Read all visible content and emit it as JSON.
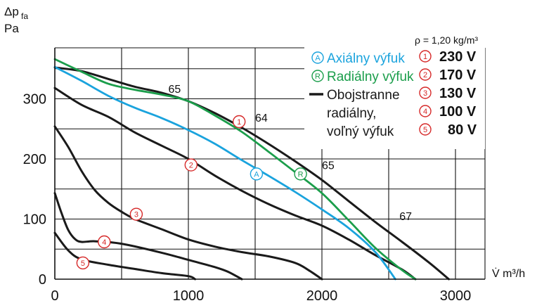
{
  "chart_data": {
    "type": "line",
    "xlabel": "V̇ m³/h",
    "ylabel": [
      "Δp",
      "fa",
      "Pa"
    ],
    "density_label": "ρ = 1,20 kg/m³",
    "xlim": [
      0,
      3250
    ],
    "ylim": [
      0,
      385
    ],
    "x_ticks": [
      "0",
      "1000",
      "2000",
      "3000"
    ],
    "x_tick_values": [
      0,
      1000,
      2000,
      3000
    ],
    "y_ticks": [
      "0",
      "100",
      "200",
      "300"
    ],
    "y_tick_values": [
      0,
      100,
      200,
      300
    ],
    "grid": true,
    "legend": [
      {
        "symbol": "A",
        "label": "Axiálny výfuk",
        "color": "#1aa3dd"
      },
      {
        "symbol": "R",
        "label": "Radiálny výfuk",
        "color": "#1b9e4b"
      },
      {
        "symbol": "",
        "label_lines": [
          "Obojstranne",
          "radiálny,",
          "voľný výfuk"
        ],
        "color": "#1a1a1a"
      }
    ],
    "speeds": [
      {
        "symbol": "1",
        "label": "230 V"
      },
      {
        "symbol": "2",
        "label": "170 V"
      },
      {
        "symbol": "3",
        "label": "130 V"
      },
      {
        "symbol": "4",
        "label": "100 V"
      },
      {
        "symbol": "5",
        "label": "80 V"
      }
    ],
    "series": [
      {
        "key": "black1",
        "color": "#1a1a1a",
        "points": [
          [
            0,
            352
          ],
          [
            200,
            346
          ],
          [
            400,
            333
          ],
          [
            600,
            320
          ],
          [
            800,
            310
          ],
          [
            1000,
            296
          ],
          [
            1200,
            276
          ],
          [
            1400,
            252
          ],
          [
            1600,
            225
          ],
          [
            1800,
            196
          ],
          [
            2000,
            165
          ],
          [
            2200,
            130
          ],
          [
            2400,
            95
          ],
          [
            2600,
            62
          ],
          [
            2800,
            28
          ],
          [
            2950,
            0
          ]
        ]
      },
      {
        "key": "axial",
        "color": "#1aa3dd",
        "points": [
          [
            0,
            353
          ],
          [
            200,
            330
          ],
          [
            400,
            305
          ],
          [
            600,
            285
          ],
          [
            800,
            268
          ],
          [
            1000,
            248
          ],
          [
            1200,
            225
          ],
          [
            1400,
            198
          ],
          [
            1600,
            172
          ],
          [
            1800,
            145
          ],
          [
            2000,
            116
          ],
          [
            2200,
            85
          ],
          [
            2400,
            45
          ],
          [
            2550,
            0
          ]
        ]
      },
      {
        "key": "radial",
        "color": "#1b9e4b",
        "points": [
          [
            0,
            366
          ],
          [
            200,
            345
          ],
          [
            400,
            325
          ],
          [
            600,
            315
          ],
          [
            800,
            307
          ],
          [
            1000,
            296
          ],
          [
            1200,
            272
          ],
          [
            1400,
            245
          ],
          [
            1600,
            212
          ],
          [
            1800,
            178
          ],
          [
            2000,
            143
          ],
          [
            2200,
            98
          ],
          [
            2400,
            52
          ],
          [
            2600,
            15
          ],
          [
            2700,
            0
          ]
        ]
      },
      {
        "key": "black2",
        "color": "#1a1a1a",
        "points": [
          [
            0,
            318
          ],
          [
            200,
            290
          ],
          [
            400,
            270
          ],
          [
            600,
            244
          ],
          [
            800,
            222
          ],
          [
            1000,
            200
          ],
          [
            1200,
            172
          ],
          [
            1400,
            147
          ],
          [
            1600,
            125
          ],
          [
            1800,
            106
          ],
          [
            2000,
            89
          ],
          [
            2200,
            66
          ],
          [
            2400,
            40
          ],
          [
            2600,
            16
          ],
          [
            2700,
            0
          ]
        ]
      },
      {
        "key": "black3",
        "color": "#1a1a1a",
        "points": [
          [
            0,
            254
          ],
          [
            100,
            220
          ],
          [
            200,
            180
          ],
          [
            300,
            148
          ],
          [
            400,
            127
          ],
          [
            500,
            112
          ],
          [
            600,
            100
          ],
          [
            800,
            83
          ],
          [
            1000,
            66
          ],
          [
            1200,
            54
          ],
          [
            1400,
            45
          ],
          [
            1600,
            38
          ],
          [
            1800,
            27
          ],
          [
            1900,
            15
          ],
          [
            2000,
            0
          ]
        ]
      },
      {
        "key": "black4",
        "color": "#1a1a1a",
        "points": [
          [
            0,
            143
          ],
          [
            50,
            110
          ],
          [
            100,
            82
          ],
          [
            150,
            67
          ],
          [
            200,
            62
          ],
          [
            300,
            63
          ],
          [
            500,
            59
          ],
          [
            800,
            44
          ],
          [
            1000,
            32
          ],
          [
            1200,
            20
          ],
          [
            1300,
            12
          ],
          [
            1400,
            0
          ]
        ]
      },
      {
        "key": "black5",
        "color": "#1a1a1a",
        "points": [
          [
            0,
            77
          ],
          [
            100,
            48
          ],
          [
            200,
            33
          ],
          [
            400,
            24
          ],
          [
            600,
            17
          ],
          [
            800,
            10
          ],
          [
            1000,
            5
          ],
          [
            1050,
            0
          ]
        ]
      }
    ],
    "efficiency_labels": [
      {
        "text": "65",
        "x": 850,
        "y": 310
      },
      {
        "text": "64",
        "x": 1500,
        "y": 262
      },
      {
        "text": "65",
        "x": 2000,
        "y": 183
      },
      {
        "text": "67",
        "x": 2580,
        "y": 98
      }
    ],
    "curve_markers": [
      {
        "symbol": "1",
        "x": 1380,
        "y": 262,
        "color": "#d62828"
      },
      {
        "symbol": "2",
        "x": 1020,
        "y": 190,
        "color": "#d62828"
      },
      {
        "symbol": "3",
        "x": 610,
        "y": 108,
        "color": "#d62828"
      },
      {
        "symbol": "4",
        "x": 370,
        "y": 62,
        "color": "#d62828"
      },
      {
        "symbol": "5",
        "x": 210,
        "y": 27,
        "color": "#d62828"
      },
      {
        "symbol": "A",
        "x": 1510,
        "y": 175,
        "color": "#1aa3dd"
      },
      {
        "symbol": "R",
        "x": 1840,
        "y": 175,
        "color": "#1b9e4b"
      }
    ]
  }
}
